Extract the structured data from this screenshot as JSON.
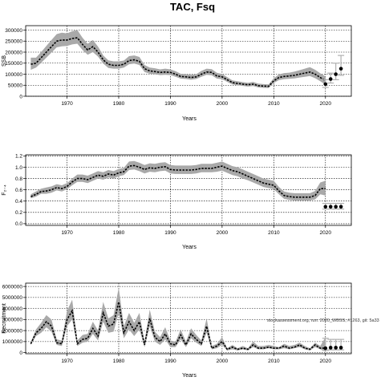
{
  "title": "TAC, Fsq",
  "note": "stockassessment.org, run: 2020_WBSS, #1263, git: 5a33",
  "chart_data": [
    {
      "type": "line",
      "title": "",
      "xlabel": "Years",
      "ylabel": "SSB",
      "xlim": [
        1962,
        2025
      ],
      "ylim": [
        0,
        320000
      ],
      "xticks": [
        1970,
        1980,
        1990,
        2000,
        2010,
        2020
      ],
      "yticks": [
        0,
        50000,
        100000,
        150000,
        200000,
        250000,
        300000
      ],
      "ytick_labels": [
        "0",
        "50000",
        "100000",
        "150000",
        "200000",
        "250000",
        "300000"
      ],
      "grid": true,
      "x": [
        1963,
        1964,
        1965,
        1966,
        1967,
        1968,
        1969,
        1970,
        1971,
        1972,
        1973,
        1974,
        1975,
        1976,
        1977,
        1978,
        1979,
        1980,
        1981,
        1982,
        1983,
        1984,
        1985,
        1986,
        1987,
        1988,
        1989,
        1990,
        1991,
        1992,
        1993,
        1994,
        1995,
        1996,
        1997,
        1998,
        1999,
        2000,
        2001,
        2002,
        2003,
        2004,
        2005,
        2006,
        2007,
        2008,
        2009,
        2010,
        2011,
        2012,
        2013,
        2014,
        2015,
        2016,
        2017,
        2018,
        2019,
        2020
      ],
      "series": [
        {
          "values": [
            145000,
            150000,
            175000,
            200000,
            225000,
            250000,
            255000,
            255000,
            262000,
            265000,
            235000,
            210000,
            225000,
            200000,
            165000,
            145000,
            140000,
            140000,
            145000,
            162000,
            165000,
            158000,
            125000,
            115000,
            112000,
            108000,
            110000,
            108000,
            100000,
            90000,
            88000,
            85000,
            88000,
            100000,
            110000,
            108000,
            92000,
            88000,
            75000,
            62000,
            58000,
            55000,
            52000,
            55000,
            48000,
            46000,
            45000,
            70000,
            85000,
            90000,
            92000,
            95000,
            100000,
            105000,
            110000,
            100000,
            85000,
            70000
          ],
          "lower": [
            120000,
            130000,
            152000,
            175000,
            198000,
            222000,
            226000,
            228000,
            235000,
            238000,
            210000,
            188000,
            200000,
            180000,
            148000,
            128000,
            125000,
            125000,
            130000,
            145000,
            148000,
            142000,
            110000,
            102000,
            100000,
            96000,
            97000,
            96000,
            88000,
            80000,
            78000,
            75000,
            78000,
            88000,
            97000,
            95000,
            80000,
            77000,
            65000,
            53000,
            50000,
            47000,
            44000,
            46000,
            40000,
            38000,
            37000,
            60000,
            73000,
            77000,
            79000,
            81000,
            85000,
            88000,
            92000,
            82000,
            68000,
            52000
          ],
          "upper": [
            175000,
            175000,
            200000,
            228000,
            255000,
            282000,
            288000,
            285000,
            295000,
            300000,
            265000,
            238000,
            255000,
            225000,
            185000,
            163000,
            158000,
            158000,
            162000,
            182000,
            185000,
            178000,
            142000,
            130000,
            127000,
            122000,
            125000,
            122000,
            114000,
            102000,
            100000,
            97000,
            100000,
            115000,
            125000,
            123000,
            106000,
            101000,
            87000,
            72000,
            68000,
            64000,
            61000,
            65000,
            57000,
            55000,
            54000,
            82000,
            99000,
            105000,
            107000,
            112000,
            118000,
            125000,
            132000,
            120000,
            104000,
            90000
          ]
        },
        {
          "type": "forecast",
          "x": [
            2020,
            2021,
            2022,
            2023
          ],
          "values": [
            55000,
            78000,
            100000,
            125000
          ],
          "lower": [
            40000,
            60000,
            75000,
            95000
          ],
          "upper": [
            75000,
            105000,
            150000,
            185000
          ]
        }
      ]
    },
    {
      "type": "line",
      "title": "",
      "xlabel": "Years",
      "ylabel": "F₂₋₄",
      "xlim": [
        1962,
        2025
      ],
      "ylim": [
        -0.03,
        1.22
      ],
      "xticks": [
        1970,
        1980,
        1990,
        2000,
        2010,
        2020
      ],
      "yticks": [
        0.0,
        0.2,
        0.4,
        0.6,
        0.8,
        1.0,
        1.2
      ],
      "ytick_labels": [
        "0.0",
        "0.2",
        "0.4",
        "0.6",
        "0.8",
        "1.0",
        "1.2"
      ],
      "grid": true,
      "x": [
        1963,
        1964,
        1965,
        1966,
        1967,
        1968,
        1969,
        1970,
        1971,
        1972,
        1973,
        1974,
        1975,
        1976,
        1977,
        1978,
        1979,
        1980,
        1981,
        1982,
        1983,
        1984,
        1985,
        1986,
        1987,
        1988,
        1989,
        1990,
        1991,
        1992,
        1993,
        1994,
        1995,
        1996,
        1997,
        1998,
        1999,
        2000,
        2001,
        2002,
        2003,
        2004,
        2005,
        2006,
        2007,
        2008,
        2009,
        2010,
        2011,
        2012,
        2013,
        2014,
        2015,
        2016,
        2017,
        2018,
        2019,
        2020
      ],
      "series": [
        {
          "values": [
            0.48,
            0.52,
            0.57,
            0.58,
            0.6,
            0.64,
            0.62,
            0.66,
            0.74,
            0.8,
            0.8,
            0.78,
            0.82,
            0.86,
            0.84,
            0.88,
            0.86,
            0.9,
            0.92,
            1.02,
            1.03,
            1.0,
            0.96,
            0.99,
            0.98,
            1.0,
            1.01,
            0.96,
            0.95,
            0.95,
            0.95,
            0.95,
            0.96,
            0.98,
            0.98,
            0.98,
            1.0,
            1.02,
            0.98,
            0.94,
            0.92,
            0.88,
            0.84,
            0.8,
            0.76,
            0.72,
            0.7,
            0.68,
            0.58,
            0.5,
            0.48,
            0.47,
            0.47,
            0.47,
            0.47,
            0.5,
            0.62,
            0.62
          ],
          "lower": [
            0.45,
            0.48,
            0.53,
            0.53,
            0.55,
            0.59,
            0.57,
            0.61,
            0.68,
            0.74,
            0.74,
            0.72,
            0.76,
            0.8,
            0.78,
            0.82,
            0.8,
            0.84,
            0.86,
            0.95,
            0.96,
            0.93,
            0.89,
            0.92,
            0.91,
            0.93,
            0.94,
            0.89,
            0.88,
            0.88,
            0.88,
            0.88,
            0.89,
            0.91,
            0.91,
            0.91,
            0.92,
            0.94,
            0.9,
            0.86,
            0.84,
            0.8,
            0.77,
            0.73,
            0.69,
            0.65,
            0.63,
            0.61,
            0.52,
            0.44,
            0.42,
            0.41,
            0.41,
            0.41,
            0.41,
            0.43,
            0.52,
            0.5
          ],
          "upper": [
            0.52,
            0.57,
            0.62,
            0.64,
            0.66,
            0.7,
            0.68,
            0.72,
            0.8,
            0.87,
            0.87,
            0.85,
            0.89,
            0.93,
            0.91,
            0.95,
            0.93,
            0.97,
            0.99,
            1.1,
            1.11,
            1.08,
            1.04,
            1.07,
            1.06,
            1.08,
            1.09,
            1.04,
            1.03,
            1.03,
            1.03,
            1.03,
            1.04,
            1.06,
            1.06,
            1.06,
            1.08,
            1.1,
            1.06,
            1.02,
            1.0,
            0.96,
            0.92,
            0.88,
            0.84,
            0.8,
            0.78,
            0.76,
            0.65,
            0.57,
            0.55,
            0.54,
            0.54,
            0.54,
            0.54,
            0.58,
            0.73,
            0.76
          ]
        },
        {
          "type": "forecast",
          "x": [
            2020,
            2021,
            2022,
            2023
          ],
          "values": [
            0.3,
            0.3,
            0.3,
            0.3
          ],
          "lower": [
            0.26,
            0.26,
            0.26,
            0.26
          ],
          "upper": [
            0.36,
            0.36,
            0.36,
            0.36
          ]
        }
      ]
    },
    {
      "type": "line",
      "title": "",
      "xlabel": "Years",
      "ylabel": "Recruitment",
      "xlim": [
        1962,
        2025
      ],
      "ylim": [
        -100000,
        6300000
      ],
      "xticks": [
        1970,
        1980,
        1990,
        2000,
        2010,
        2020
      ],
      "yticks": [
        0,
        1000000,
        2000000,
        3000000,
        4000000,
        5000000,
        6000000
      ],
      "ytick_labels": [
        "0",
        "1000000",
        "2000000",
        "3000000",
        "4000000",
        "5000000",
        "6000000"
      ],
      "grid": true,
      "x": [
        1963,
        1964,
        1965,
        1966,
        1967,
        1968,
        1969,
        1970,
        1971,
        1972,
        1973,
        1974,
        1975,
        1976,
        1977,
        1978,
        1979,
        1980,
        1981,
        1982,
        1983,
        1984,
        1985,
        1986,
        1987,
        1988,
        1989,
        1990,
        1991,
        1992,
        1993,
        1994,
        1995,
        1996,
        1997,
        1998,
        1999,
        2000,
        2001,
        2002,
        2003,
        2004,
        2005,
        2006,
        2007,
        2008,
        2009,
        2010,
        2011,
        2012,
        2013,
        2014,
        2015,
        2016,
        2017,
        2018,
        2019,
        2020
      ],
      "series": [
        {
          "values": [
            800000,
            1800000,
            2200000,
            2800000,
            2400000,
            900000,
            800000,
            3000000,
            3800000,
            800000,
            1200000,
            1300000,
            2200000,
            1500000,
            3600000,
            2400000,
            2600000,
            4600000,
            1800000,
            2800000,
            2000000,
            2800000,
            700000,
            3100000,
            1400000,
            1000000,
            1700000,
            800000,
            700000,
            1600000,
            700000,
            1700000,
            1200000,
            800000,
            2400000,
            400000,
            600000,
            1000000,
            300000,
            500000,
            300000,
            400000,
            300000,
            700000,
            400000,
            400000,
            500000,
            400000,
            400000,
            600000,
            400000,
            500000,
            700000,
            400000,
            300000,
            700000,
            400000,
            400000
          ],
          "lower": [
            700000,
            1500000,
            1800000,
            2300000,
            1900000,
            700000,
            600000,
            2400000,
            3000000,
            600000,
            900000,
            1000000,
            1700000,
            1100000,
            2800000,
            1800000,
            1900000,
            3600000,
            1300000,
            2100000,
            1500000,
            2100000,
            500000,
            2400000,
            1000000,
            700000,
            1200000,
            500000,
            500000,
            1200000,
            500000,
            1300000,
            900000,
            600000,
            1800000,
            300000,
            400000,
            700000,
            200000,
            300000,
            200000,
            300000,
            200000,
            500000,
            300000,
            300000,
            400000,
            300000,
            300000,
            400000,
            300000,
            400000,
            500000,
            300000,
            200000,
            500000,
            300000,
            100000
          ],
          "upper": [
            950000,
            2100000,
            2700000,
            3400000,
            3000000,
            1200000,
            1100000,
            3800000,
            4800000,
            1100000,
            1600000,
            1700000,
            2800000,
            2000000,
            4600000,
            3100000,
            3400000,
            5900000,
            2400000,
            3600000,
            2700000,
            3600000,
            1000000,
            3900000,
            1900000,
            1400000,
            2300000,
            1100000,
            1000000,
            2100000,
            1000000,
            2200000,
            1600000,
            1100000,
            3100000,
            600000,
            800000,
            1400000,
            400000,
            700000,
            400000,
            600000,
            400000,
            1000000,
            600000,
            600000,
            700000,
            600000,
            500000,
            800000,
            600000,
            700000,
            900000,
            600000,
            400000,
            900000,
            600000,
            1400000
          ]
        },
        {
          "type": "forecast",
          "x": [
            2020,
            2021,
            2022,
            2023
          ],
          "values": [
            400000,
            450000,
            450000,
            450000
          ],
          "lower": [
            200000,
            250000,
            250000,
            250000
          ],
          "upper": [
            1300000,
            1200000,
            1200000,
            1200000
          ]
        }
      ]
    }
  ]
}
